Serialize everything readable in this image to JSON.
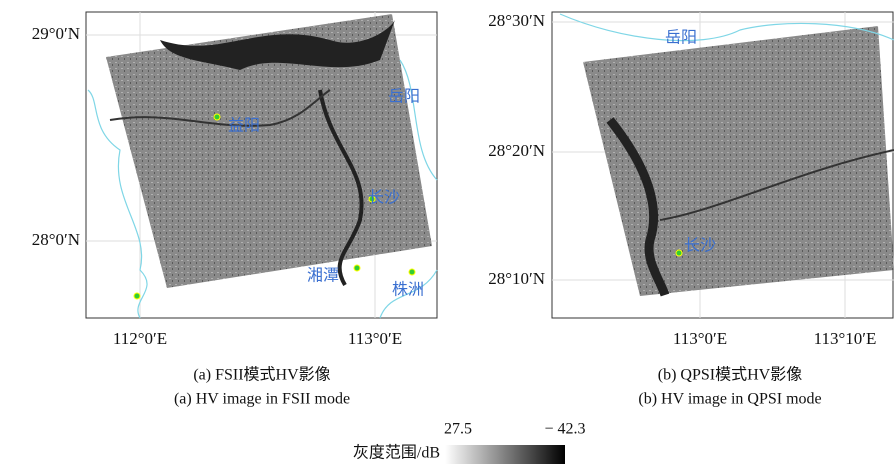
{
  "panels": [
    {
      "caption_cn": "(a) FSII模式HV影像",
      "caption_en": "(a) HV image in FSII mode",
      "lat_labels": [
        "29°0′N",
        "28°0′N"
      ],
      "lon_labels": [
        "112°0′E",
        "113°0′E"
      ],
      "places": [
        "益阳",
        "长沙",
        "岳阳",
        "湘潭",
        "株洲"
      ]
    },
    {
      "caption_cn": "(b) QPSI模式HV影像",
      "caption_en": "(b) HV image in QPSI mode",
      "lat_labels": [
        "28°30′N",
        "28°20′N",
        "28°10′N"
      ],
      "lon_labels": [
        "113°0′E",
        "113°10′E"
      ],
      "places": [
        "岳阳",
        "长沙"
      ]
    }
  ],
  "colorbar": {
    "label": "灰度范围/dB",
    "min_label": "27.5",
    "max_label": "− 42.3"
  }
}
